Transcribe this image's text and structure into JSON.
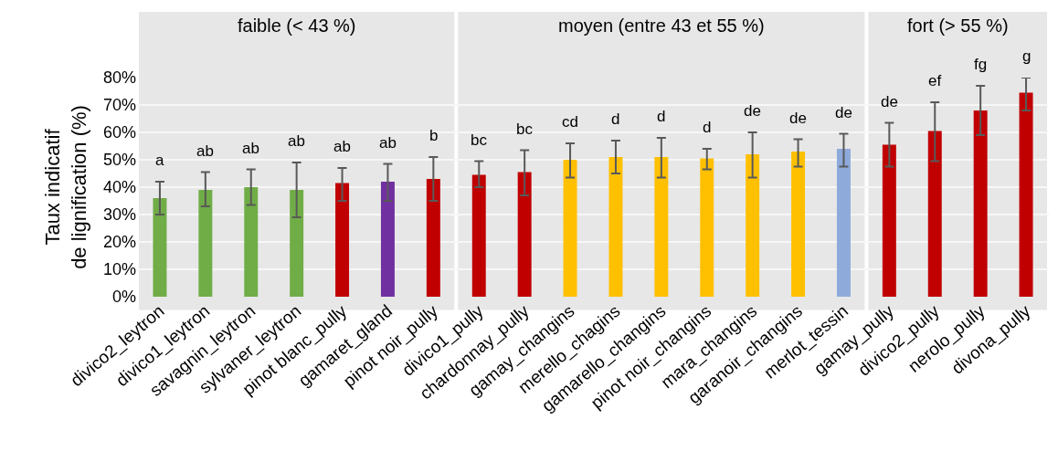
{
  "chart_data": {
    "type": "bar",
    "ylabel": "Taux indicatif\nde lignification (%)",
    "categories": [
      "divico2_leytron",
      "divico1_leytron",
      "savagnin_leytron",
      "sylvaner_leytron",
      "pinot blanc_pully",
      "gamaret_gland",
      "pinot noir_pully",
      "divico1_pully",
      "chardonnay_pully",
      "gamay_changins",
      "merello_chagins",
      "gamarello_changins",
      "pinot noir_changins",
      "mara_changins",
      "garanoir_changins",
      "merlot_tessin",
      "gamay_pully",
      "divico2_pully",
      "nerolo_pully",
      "divona_pully"
    ],
    "values": [
      36,
      39,
      40,
      39,
      41.5,
      42,
      43,
      44.5,
      45.5,
      50,
      51,
      51,
      50.5,
      52,
      53,
      54,
      55.5,
      60.5,
      68,
      74.5
    ],
    "colors": [
      "#70ad47",
      "#70ad47",
      "#70ad47",
      "#70ad47",
      "#c00000",
      "#7030a0",
      "#c00000",
      "#c00000",
      "#c00000",
      "#ffc000",
      "#ffc000",
      "#ffc000",
      "#ffc000",
      "#ffc000",
      "#ffc000",
      "#8eaadb",
      "#c00000",
      "#c00000",
      "#c00000",
      "#c00000"
    ],
    "errors": [
      [
        30,
        42
      ],
      [
        33,
        45.5
      ],
      [
        33.5,
        46.5
      ],
      [
        29,
        49
      ],
      [
        35,
        47
      ],
      [
        35,
        48.5
      ],
      [
        35,
        51
      ],
      [
        40,
        49.5
      ],
      [
        37,
        53.5
      ],
      [
        43.5,
        56
      ],
      [
        45,
        57
      ],
      [
        43.5,
        58
      ],
      [
        46.5,
        54
      ],
      [
        43.5,
        60
      ],
      [
        47.5,
        57.5
      ],
      [
        47.5,
        59.5
      ],
      [
        47.5,
        63.5
      ],
      [
        49.5,
        71
      ],
      [
        59,
        77
      ],
      [
        68,
        80
      ]
    ],
    "ylim": [
      0,
      80
    ],
    "yticks": [
      {
        "value": 0,
        "label": "0%"
      },
      {
        "value": 10,
        "label": "10%"
      },
      {
        "value": 20,
        "label": "20%"
      },
      {
        "value": 30,
        "label": "30%"
      },
      {
        "value": 40,
        "label": "40%"
      },
      {
        "value": 50,
        "label": "50%"
      },
      {
        "value": 60,
        "label": "60%"
      },
      {
        "value": 70,
        "label": "70%"
      },
      {
        "value": 80,
        "label": "80%"
      }
    ],
    "grid": "y",
    "bands": [
      {
        "axis": "x",
        "from": "divico2_leytron",
        "to": "pinot noir_pully",
        "label": "faible (< 43 %)",
        "color": "#e7e7e7"
      },
      {
        "axis": "x",
        "from": "divico1_pully",
        "to": "merlot_tessin",
        "label": "moyen (entre 43 et 55 %)",
        "color": "#e7e7e7"
      },
      {
        "axis": "x",
        "from": "gamay_pully",
        "to": "divona_pully",
        "label": "fort (> 55 %)",
        "color": "#e7e7e7"
      }
    ],
    "value_labels": [
      "a",
      "ab",
      "ab",
      "ab",
      "ab",
      "ab",
      "b",
      "bc",
      "bc",
      "cd",
      "d",
      "d",
      "d",
      "de",
      "de",
      "de",
      "de",
      "ef",
      "fg",
      "g"
    ]
  }
}
